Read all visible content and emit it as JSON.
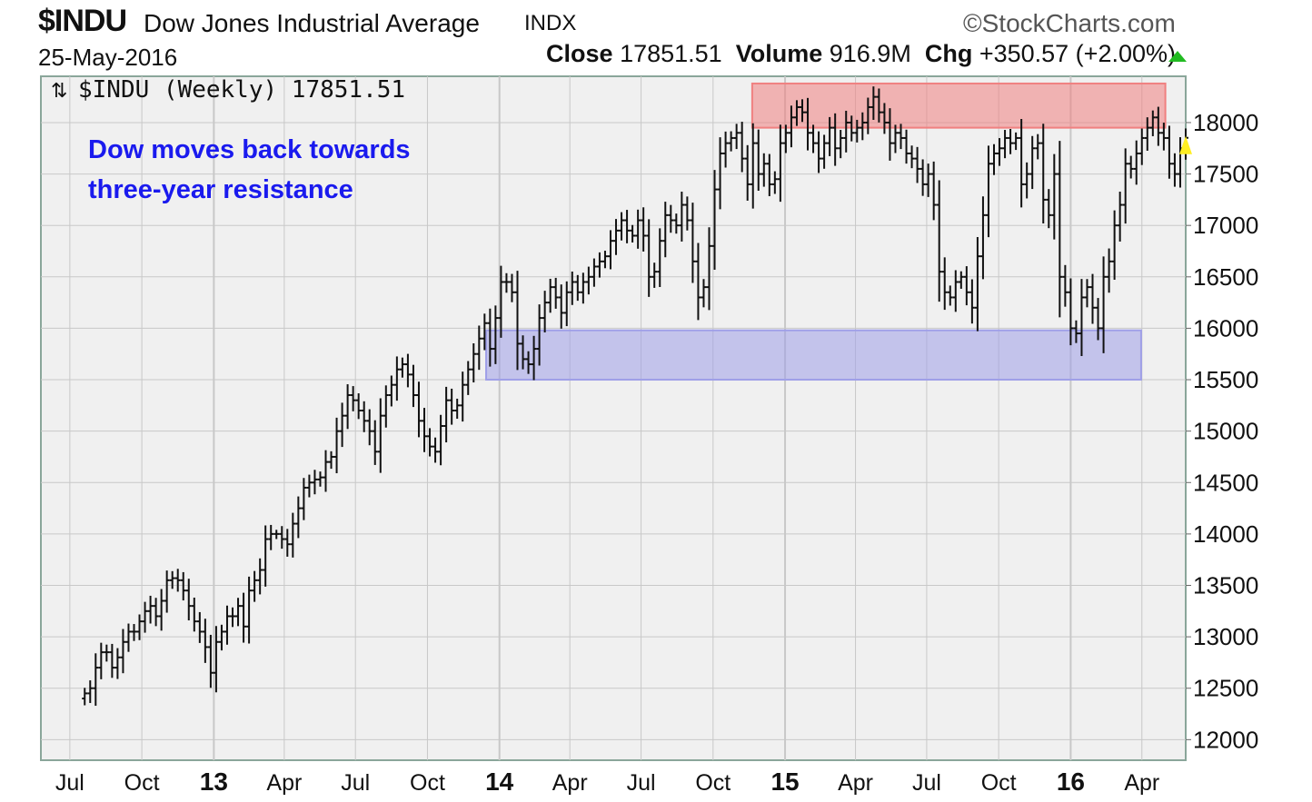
{
  "header": {
    "symbol": "$INDU",
    "name": "Dow Jones Industrial Average",
    "exchange": "INDX",
    "brand": "©StockCharts.com",
    "date": "25-May-2016",
    "close_label": "Close",
    "close_value": "17851.51",
    "volume_label": "Volume",
    "volume_value": "916.9M",
    "chg_label": "Chg",
    "chg_value": "+350.57 (+2.00%)"
  },
  "colors": {
    "background": "#ffffff",
    "plot_bg": "#f0f0f0",
    "grid": "#c8c8c8",
    "bars": "#111111",
    "resistance_zone": "#f08080",
    "support_zone": "#9f9fe8",
    "annotation": "#1a1aee",
    "up_arrow": "#22bb22"
  },
  "chart_data": {
    "type": "ohlc",
    "title": "$INDU (Weekly) 17851.51",
    "annotation": "Dow moves back towards three-year resistance",
    "annotation_lines": [
      "Dow moves back towards",
      "three-year resistance"
    ],
    "ylim": [
      11800,
      18450
    ],
    "y_ticks": [
      12000,
      12500,
      13000,
      13500,
      14000,
      14500,
      15000,
      15500,
      16000,
      16500,
      17000,
      17500,
      18000
    ],
    "x_range": [
      "2012-05-25",
      "2016-05-27"
    ],
    "x_ticks": [
      {
        "label": "Jul",
        "date": "2012-07-01",
        "major": false
      },
      {
        "label": "Oct",
        "date": "2012-10-01",
        "major": false
      },
      {
        "label": "13",
        "date": "2013-01-01",
        "major": true
      },
      {
        "label": "Apr",
        "date": "2013-04-01",
        "major": false
      },
      {
        "label": "Jul",
        "date": "2013-07-01",
        "major": false
      },
      {
        "label": "Oct",
        "date": "2013-10-01",
        "major": false
      },
      {
        "label": "14",
        "date": "2014-01-01",
        "major": true
      },
      {
        "label": "Apr",
        "date": "2014-04-01",
        "major": false
      },
      {
        "label": "Jul",
        "date": "2014-07-01",
        "major": false
      },
      {
        "label": "Oct",
        "date": "2014-10-01",
        "major": false
      },
      {
        "label": "15",
        "date": "2015-01-01",
        "major": true
      },
      {
        "label": "Apr",
        "date": "2015-04-01",
        "major": false
      },
      {
        "label": "Jul",
        "date": "2015-07-01",
        "major": false
      },
      {
        "label": "Oct",
        "date": "2015-10-01",
        "major": false
      },
      {
        "label": "16",
        "date": "2016-01-01",
        "major": true
      },
      {
        "label": "Apr",
        "date": "2016-04-01",
        "major": false
      }
    ],
    "zones": [
      {
        "name": "resistance",
        "from": "2014-11-20",
        "to": "2016-05-01",
        "low": 17950,
        "high": 18380
      },
      {
        "name": "support",
        "from": "2013-12-15",
        "to": "2016-03-31",
        "low": 15500,
        "high": 15980
      }
    ],
    "weekly_closes": [
      12450,
      12500,
      12700,
      12850,
      12850,
      12700,
      12800,
      12950,
      13050,
      13050,
      13150,
      13250,
      13300,
      13200,
      13350,
      13550,
      13570,
      13550,
      13450,
      13300,
      13150,
      13050,
      12900,
      12650,
      12950,
      13050,
      13200,
      13200,
      13300,
      13100,
      13450,
      13550,
      13650,
      13950,
      14000,
      14000,
      13950,
      13900,
      14100,
      14250,
      14450,
      14500,
      14530,
      14550,
      14700,
      14750,
      15000,
      15150,
      15350,
      15300,
      15200,
      15100,
      15000,
      14800,
      15150,
      15350,
      15450,
      15600,
      15650,
      15550,
      15350,
      15100,
      14950,
      14850,
      14800,
      15050,
      15300,
      15200,
      15250,
      15450,
      15600,
      15750,
      15900,
      16050,
      15800,
      16100,
      16450,
      16450,
      16350,
      15850,
      15700,
      15650,
      15800,
      16100,
      16250,
      16400,
      16300,
      16150,
      16350,
      16450,
      16350,
      16450,
      16500,
      16600,
      16650,
      16700,
      16850,
      16950,
      17050,
      16950,
      16900,
      17050,
      16900,
      16500,
      16550,
      16850,
      17100,
      17050,
      17000,
      17200,
      17050,
      16650,
      16300,
      16400,
      16800,
      17350,
      17700,
      17800,
      17850,
      17900,
      17650,
      17400,
      17800,
      17500,
      17600,
      17400,
      17450,
      17800,
      17900,
      18050,
      18150,
      18100,
      17900,
      17800,
      17650,
      17800,
      17950,
      17750,
      17850,
      18000,
      17900,
      17950,
      18000,
      18150,
      18250,
      18100,
      18000,
      17800,
      17900,
      17850,
      17700,
      17650,
      17550,
      17400,
      17500,
      17200,
      16550,
      16350,
      16300,
      16450,
      16500,
      16350,
      16200,
      16700,
      17100,
      17600,
      17700,
      17750,
      17850,
      17800,
      17850,
      17400,
      17500,
      17750,
      17800,
      17250,
      17100,
      17500,
      16500,
      16350,
      16000,
      15950,
      16300,
      16400,
      16200,
      16000,
      16500,
      16650,
      17000,
      17200,
      17600,
      17550,
      17700,
      17850,
      17950,
      18050,
      17900,
      17850,
      17600,
      17500,
      17750,
      17852
    ]
  }
}
